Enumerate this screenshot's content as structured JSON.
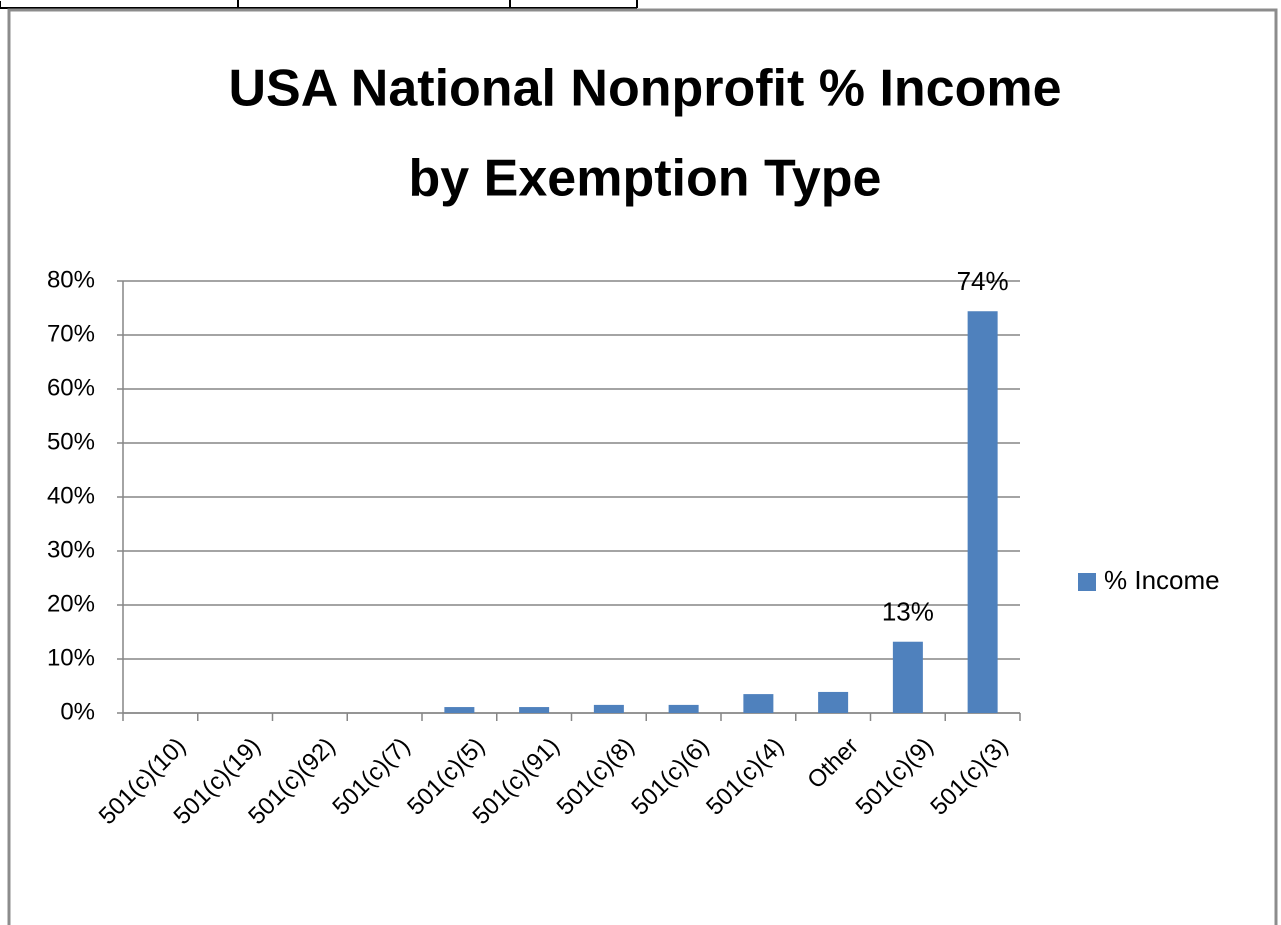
{
  "chart_data": {
    "type": "bar",
    "title": [
      "USA National Nonprofit % Income",
      "by Exemption Type"
    ],
    "categories": [
      "501(c)(10)",
      "501(c)(19)",
      "501(c)(92)",
      "501(c)(7)",
      "501(c)(5)",
      "501(c)(91)",
      "501(c)(8)",
      "501(c)(6)",
      "501(c)(4)",
      "Other",
      "501(c)(9)",
      "501(c)(3)"
    ],
    "series": [
      {
        "name": "% Income",
        "color": "#4f81bd",
        "values": [
          0,
          0,
          0,
          0,
          1.1,
          1.1,
          1.5,
          1.5,
          3.5,
          3.9,
          13.2,
          74.4
        ],
        "value_labels": [
          null,
          null,
          null,
          null,
          null,
          null,
          null,
          null,
          null,
          null,
          "13%",
          "74%"
        ]
      }
    ],
    "ylim": [
      0,
      80
    ],
    "yticks": [
      {
        "value": 0,
        "label": "0%"
      },
      {
        "value": 10,
        "label": "10%"
      },
      {
        "value": 20,
        "label": "20%"
      },
      {
        "value": 30,
        "label": "30%"
      },
      {
        "value": 40,
        "label": "40%"
      },
      {
        "value": 50,
        "label": "50%"
      },
      {
        "value": 60,
        "label": "60%"
      },
      {
        "value": 70,
        "label": "70%"
      },
      {
        "value": 80,
        "label": "80%"
      }
    ],
    "grid": true,
    "legend": "right"
  }
}
